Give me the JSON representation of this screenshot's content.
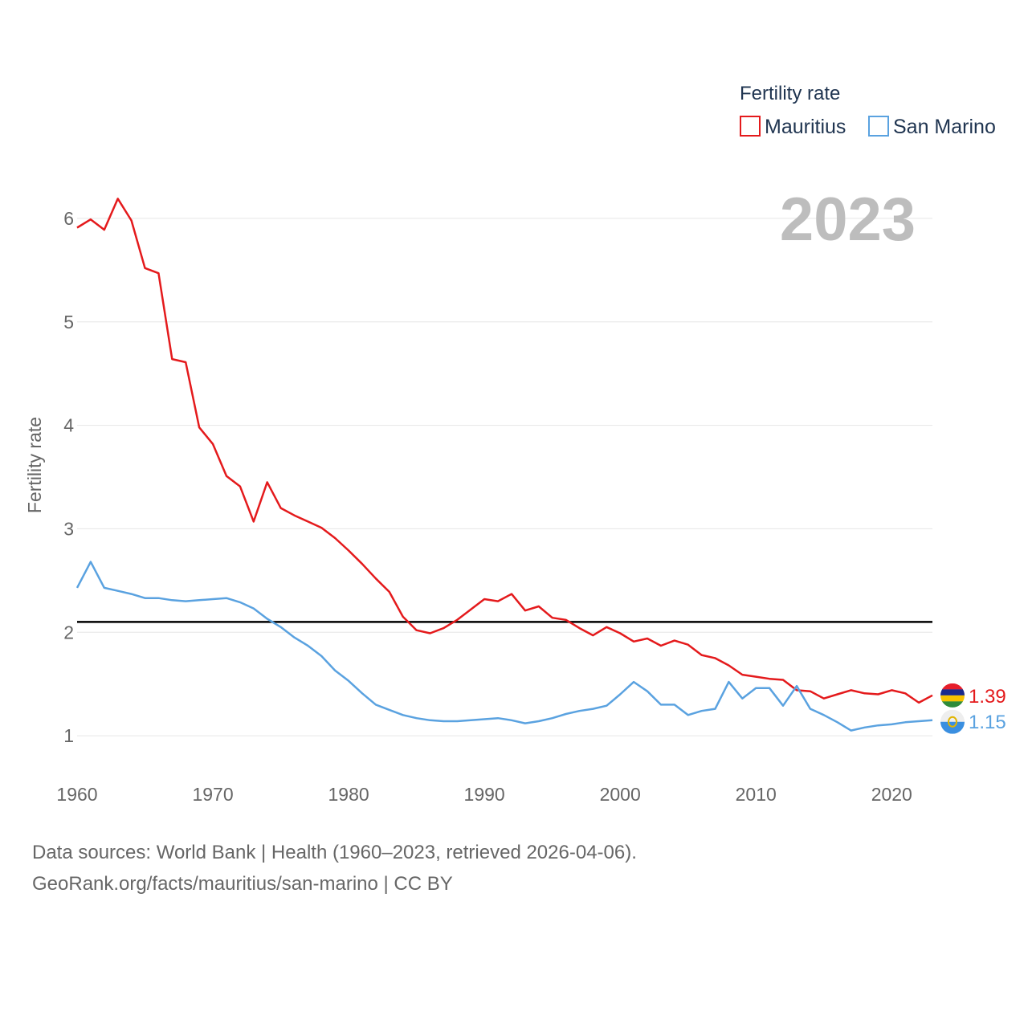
{
  "chart_data": {
    "type": "line",
    "title": "Fertility rate",
    "ylabel": "Fertility rate",
    "xlabel": "",
    "highlight_year": "2023",
    "xlim": [
      1960,
      2023
    ],
    "ylim": [
      0.5,
      6.5
    ],
    "x_ticks": [
      1960,
      1970,
      1980,
      1990,
      2000,
      2010,
      2020
    ],
    "y_ticks": [
      1,
      2,
      3,
      4,
      5,
      6
    ],
    "reference_line": 2.1,
    "x": [
      1960,
      1961,
      1962,
      1963,
      1964,
      1965,
      1966,
      1967,
      1968,
      1969,
      1970,
      1971,
      1972,
      1973,
      1974,
      1975,
      1976,
      1977,
      1978,
      1979,
      1980,
      1981,
      1982,
      1983,
      1984,
      1985,
      1986,
      1987,
      1988,
      1989,
      1990,
      1991,
      1992,
      1993,
      1994,
      1995,
      1996,
      1997,
      1998,
      1999,
      2000,
      2001,
      2002,
      2003,
      2004,
      2005,
      2006,
      2007,
      2008,
      2009,
      2010,
      2011,
      2012,
      2013,
      2014,
      2015,
      2016,
      2017,
      2018,
      2019,
      2020,
      2021,
      2022,
      2023
    ],
    "series": [
      {
        "name": "Mauritius",
        "color": "#e41a1c",
        "end_label": "1.39",
        "values": [
          5.91,
          5.99,
          5.89,
          6.19,
          5.98,
          5.52,
          5.47,
          4.64,
          4.61,
          3.98,
          3.82,
          3.51,
          3.41,
          3.07,
          3.45,
          3.2,
          3.13,
          3.07,
          3.01,
          2.91,
          2.79,
          2.66,
          2.52,
          2.39,
          2.15,
          2.02,
          1.99,
          2.04,
          2.12,
          2.22,
          2.32,
          2.3,
          2.37,
          2.21,
          2.25,
          2.14,
          2.12,
          2.04,
          1.97,
          2.05,
          1.99,
          1.91,
          1.94,
          1.87,
          1.92,
          1.88,
          1.78,
          1.75,
          1.68,
          1.59,
          1.57,
          1.55,
          1.54,
          1.44,
          1.43,
          1.36,
          1.4,
          1.44,
          1.41,
          1.4,
          1.44,
          1.41,
          1.32,
          1.39
        ]
      },
      {
        "name": "San Marino",
        "color": "#5aa2e0",
        "end_label": "1.15",
        "values": [
          2.43,
          2.68,
          2.43,
          2.4,
          2.37,
          2.33,
          2.33,
          2.31,
          2.3,
          2.31,
          2.32,
          2.33,
          2.29,
          2.23,
          2.13,
          2.05,
          1.95,
          1.87,
          1.77,
          1.63,
          1.53,
          1.41,
          1.3,
          1.25,
          1.2,
          1.17,
          1.15,
          1.14,
          1.14,
          1.15,
          1.16,
          1.17,
          1.15,
          1.12,
          1.14,
          1.17,
          1.21,
          1.24,
          1.26,
          1.29,
          1.4,
          1.52,
          1.43,
          1.3,
          1.3,
          1.2,
          1.24,
          1.26,
          1.52,
          1.36,
          1.46,
          1.46,
          1.29,
          1.48,
          1.26,
          1.2,
          1.13,
          1.05,
          1.08,
          1.1,
          1.11,
          1.13,
          1.14,
          1.15
        ]
      }
    ]
  },
  "footer": {
    "line1": "Data sources: World Bank | Health (1960–2023, retrieved 2026-04-06).",
    "line2": "GeoRank.org/facts/mauritius/san-marino | CC BY"
  }
}
